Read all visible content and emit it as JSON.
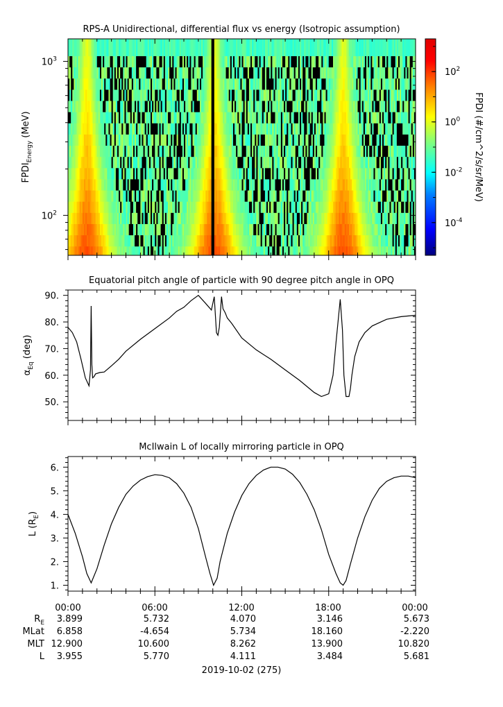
{
  "panel1": {
    "title": "RPS-A Unidirectional, differential flux vs energy (Isotropic assumption)",
    "ylabel_main": "FPDI",
    "ylabel_sub": "Energy",
    "ylabel_unit": " (MeV)",
    "ytick_base": "10",
    "colorbar_label": "FPDI (#/cm^2/s/sr/MeV)"
  },
  "panel2": {
    "title": "Equatorial pitch angle of particle with 90 degree pitch angle in OPQ",
    "ylabel_main": "α",
    "ylabel_sub": "Eq",
    "ylabel_unit": " (deg)"
  },
  "panel3": {
    "title": "McIlwain L of locally mirroring particle in OPQ",
    "ylabel_main": "L (R",
    "ylabel_sub": "E",
    "ylabel_unit": ")"
  },
  "footer": {
    "date_label": "2019-10-02 (275)",
    "row_labels": [
      {
        "main": "R",
        "sub": "E"
      },
      {
        "main": "MLat",
        "sub": ""
      },
      {
        "main": "MLT",
        "sub": ""
      },
      {
        "main": "L",
        "sub": ""
      }
    ],
    "time_labels": [
      "00:00",
      "06:00",
      "12:00",
      "18:00",
      "00:00"
    ],
    "values": [
      [
        "3.899",
        "5.732",
        "4.070",
        "3.146",
        "5.673"
      ],
      [
        "6.858",
        "-4.654",
        "5.734",
        "18.160",
        "-2.220"
      ],
      [
        "12.900",
        "10.600",
        "8.262",
        "13.900",
        "10.820"
      ],
      [
        "3.955",
        "5.770",
        "4.111",
        "3.484",
        "5.681"
      ]
    ]
  },
  "chart_data": [
    {
      "type": "heatmap",
      "title": "RPS-A Unidirectional, differential flux vs energy (Isotropic assumption)",
      "ylabel": "FPDI_Energy (MeV)",
      "yscale": "log",
      "ylim": [
        55,
        1400
      ],
      "yticks": [
        {
          "value": 100,
          "label": "10",
          "exp": "2"
        },
        {
          "value": 1000,
          "label": "10",
          "exp": "3"
        }
      ],
      "xlim_hours": [
        0,
        24
      ],
      "colorbar": {
        "label": "FPDI (#/cm^2/s/sr/MeV)",
        "scale": "log",
        "range_exp": [
          -5.3,
          3.3
        ],
        "ticks": [
          {
            "exp": "2",
            "value": 100
          },
          {
            "exp": "0",
            "value": 1
          },
          {
            "exp": "-2",
            "value": 0.01
          },
          {
            "exp": "-4",
            "value": 0.0001
          }
        ],
        "colors": [
          "#00007f",
          "#0000ff",
          "#007fff",
          "#00ffff",
          "#7fff7f",
          "#ffff00",
          "#ff7f00",
          "#ff0000",
          "#7f0000"
        ]
      },
      "enhancement_peaks_hours": [
        1.3,
        10.1,
        19.0
      ],
      "gap_hours": [
        10.0
      ]
    },
    {
      "type": "line",
      "title": "Equatorial pitch angle of particle with 90 degree pitch angle in OPQ",
      "ylabel": "α_Eq (deg)",
      "ylim": [
        43,
        92
      ],
      "yticks": [
        50,
        60,
        70,
        80,
        90
      ],
      "xlim_hours": [
        0,
        24
      ],
      "series": [
        {
          "x": [
            0,
            0.3,
            0.6,
            0.9,
            1.2,
            1.45,
            1.55,
            1.6,
            1.65,
            1.7,
            1.8,
            1.9,
            2.2,
            2.5,
            3.0,
            3.5,
            4.0,
            5.0,
            6.0,
            7.0,
            7.5,
            8.0,
            8.5,
            9.0,
            9.5,
            9.9,
            10.1,
            10.25,
            10.35,
            10.45,
            10.6,
            10.7,
            10.85,
            11.0,
            11.3,
            12.0,
            13.0,
            14.0,
            15.0,
            16.0,
            17.0,
            17.5,
            18.0,
            18.3,
            18.5,
            18.8,
            18.95,
            19.05,
            19.2,
            19.4,
            19.5,
            19.6,
            19.8,
            20.1,
            20.5,
            21.0,
            22.0,
            23.0,
            24.0
          ],
          "y": [
            78,
            76,
            72.5,
            66,
            59,
            56,
            62,
            86,
            64,
            59,
            59.5,
            60.5,
            61,
            61.2,
            63.5,
            66,
            69,
            73.5,
            77.5,
            81.5,
            84,
            85.5,
            88,
            90,
            87,
            84.5,
            89.5,
            76,
            75,
            78,
            89.5,
            85,
            83.5,
            81.5,
            79.5,
            74,
            69.5,
            66,
            62,
            58,
            53.5,
            52,
            53,
            60,
            72,
            88.5,
            77,
            60,
            52,
            52,
            55,
            60,
            67,
            72.5,
            76,
            78.5,
            81,
            82,
            82.5
          ]
        }
      ]
    },
    {
      "type": "line",
      "title": "McIlwain L of locally mirroring particle in OPQ",
      "ylabel": "L (R_E)",
      "ylim": [
        0.75,
        6.45
      ],
      "yticks": [
        1,
        2,
        3,
        4,
        5,
        6
      ],
      "xlim_hours": [
        0,
        24
      ],
      "series": [
        {
          "x": [
            0,
            0.5,
            1.0,
            1.3,
            1.6,
            2.0,
            2.5,
            3.0,
            3.5,
            4.0,
            4.5,
            5.0,
            5.5,
            6.0,
            6.5,
            7.0,
            7.5,
            8.0,
            8.5,
            9.0,
            9.5,
            9.8,
            10.05,
            10.3,
            10.5,
            11.0,
            11.5,
            12.0,
            12.5,
            13.0,
            13.5,
            14.0,
            14.5,
            15.0,
            15.5,
            16.0,
            16.5,
            17.0,
            17.5,
            18.0,
            18.5,
            18.8,
            19.0,
            19.2,
            19.5,
            20.0,
            20.5,
            21.0,
            21.5,
            22.0,
            22.5,
            23.0,
            23.5,
            24.0
          ],
          "y": [
            4.0,
            3.2,
            2.2,
            1.5,
            1.1,
            1.7,
            2.7,
            3.6,
            4.3,
            4.85,
            5.2,
            5.45,
            5.6,
            5.68,
            5.65,
            5.55,
            5.3,
            4.9,
            4.3,
            3.4,
            2.2,
            1.5,
            1.0,
            1.3,
            2.0,
            3.2,
            4.1,
            4.8,
            5.3,
            5.65,
            5.88,
            6.0,
            6.0,
            5.92,
            5.7,
            5.35,
            4.85,
            4.2,
            3.35,
            2.3,
            1.5,
            1.1,
            1.0,
            1.2,
            1.9,
            3.0,
            3.9,
            4.6,
            5.1,
            5.4,
            5.55,
            5.62,
            5.62,
            5.55
          ]
        }
      ]
    }
  ]
}
